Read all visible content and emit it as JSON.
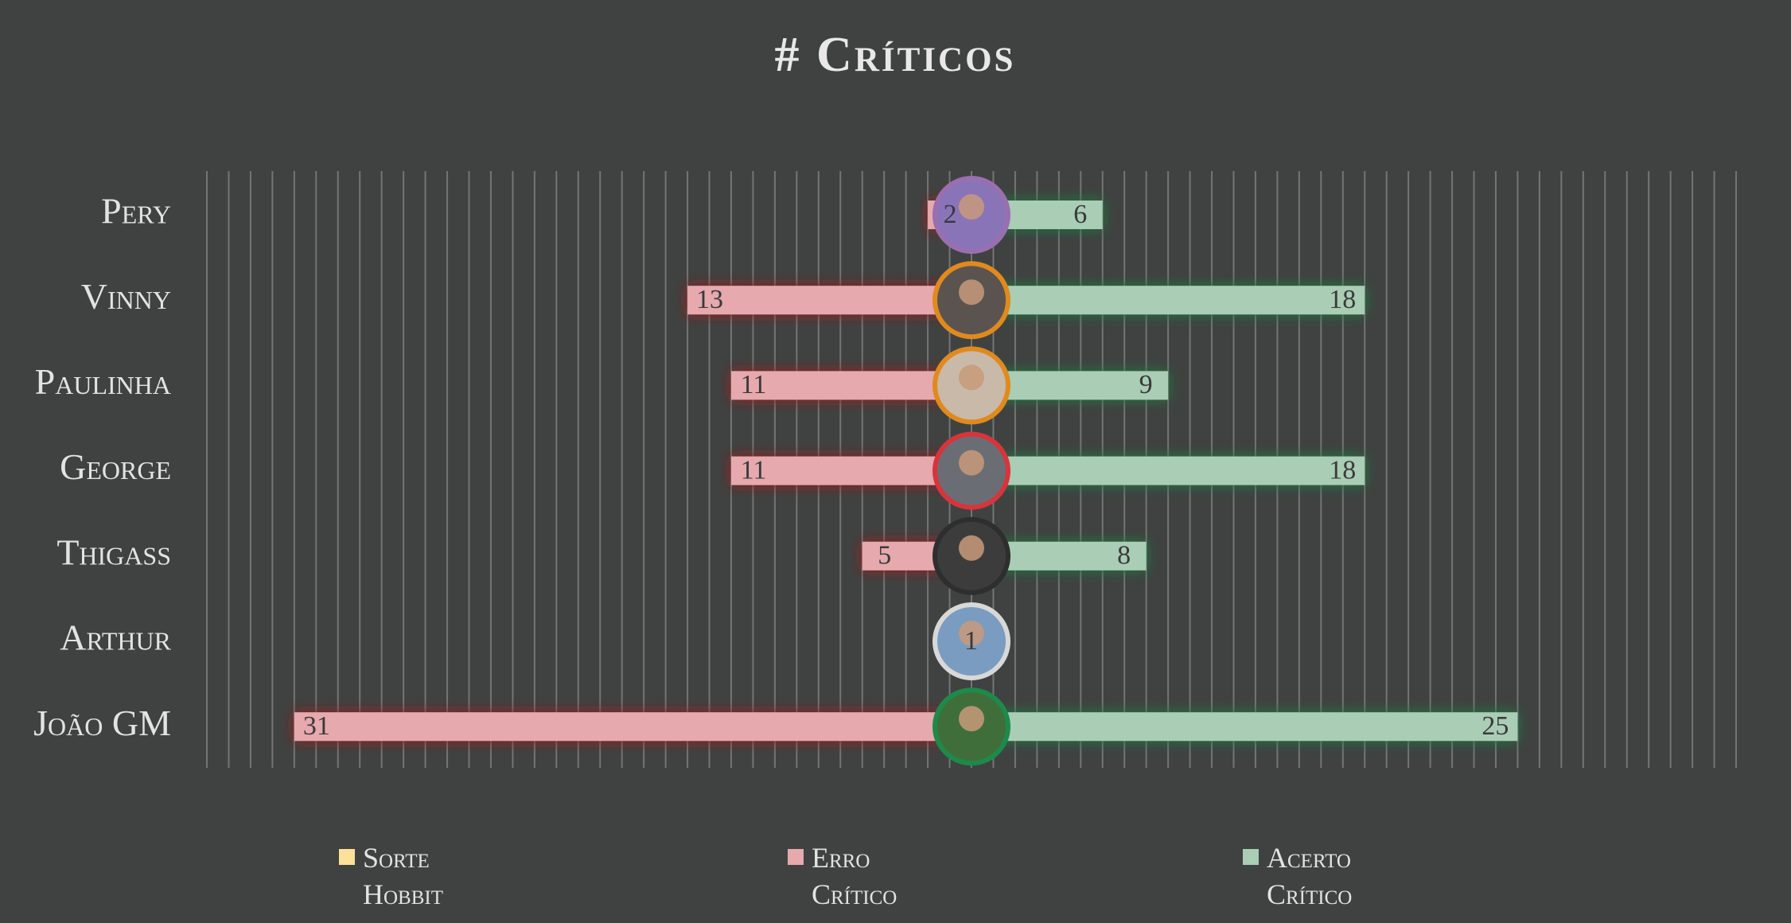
{
  "chart_data": {
    "type": "diverging-bar",
    "title": "# Críticos",
    "categories": [
      "Pery",
      "Vinny",
      "Paulinha",
      "George",
      "Thigass",
      "Arthur",
      "João GM"
    ],
    "series": [
      {
        "name": "Sorte Hobbit",
        "color": "#ffe09a",
        "side": "left",
        "values": [
          null,
          null,
          null,
          null,
          null,
          null,
          null
        ]
      },
      {
        "name": "Erro Crítico",
        "color": "#e6a9ae",
        "glow": "#9b1c1c",
        "side": "left",
        "values": [
          2,
          13,
          11,
          11,
          5,
          null,
          31
        ]
      },
      {
        "name": "Acerto Crítico",
        "color": "#a9cdb5",
        "glow": "#1f7a3e",
        "side": "right",
        "values": [
          6,
          18,
          9,
          18,
          8,
          1,
          25
        ]
      }
    ],
    "xlim": [
      -35,
      35
    ],
    "xticks": [
      -35,
      -34,
      -33,
      -32,
      -31,
      -30,
      -29,
      -28,
      -27,
      -26,
      -25,
      -24,
      -23,
      -22,
      -21,
      -20,
      -19,
      -18,
      -17,
      -16,
      -15,
      -14,
      -13,
      -12,
      -11,
      -10,
      -9,
      -8,
      -7,
      -6,
      -5,
      -4,
      -3,
      -2,
      -1,
      0,
      1,
      2,
      3,
      4,
      5,
      6,
      7,
      8,
      9,
      10,
      11,
      12,
      13,
      14,
      15,
      16,
      17,
      18,
      19,
      20,
      21,
      22,
      23,
      24,
      25,
      26,
      27,
      28,
      29,
      30,
      31,
      32,
      33,
      34,
      35
    ],
    "grid": true
  }
}
